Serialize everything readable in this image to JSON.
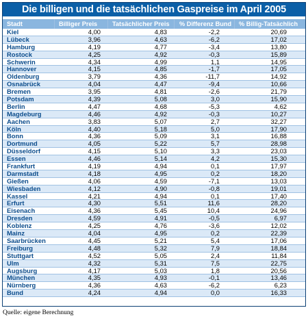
{
  "title": "Die billigen und die tatsächlichen Gaspreise im April 2005",
  "columns": {
    "city": "Stadt",
    "cheap": "Billiger Preis",
    "actual": "Tatsächlicher Preis",
    "diff": "% Differenz Bund",
    "pct": "% Billig-Tatsächlich"
  },
  "rows": [
    {
      "city": "Kiel",
      "cheap": "4,00",
      "actual": "4,83",
      "diff": "-2,2",
      "pct": "20,69"
    },
    {
      "city": "Lübeck",
      "cheap": "3,96",
      "actual": "4,63",
      "diff": "-6,2",
      "pct": "17,02"
    },
    {
      "city": "Hamburg",
      "cheap": "4,19",
      "actual": "4,77",
      "diff": "-3,4",
      "pct": "13,80"
    },
    {
      "city": "Rostock",
      "cheap": "4,25",
      "actual": "4,92",
      "diff": "-0,3",
      "pct": "15,89"
    },
    {
      "city": "Schwerin",
      "cheap": "4,34",
      "actual": "4,99",
      "diff": "1,1",
      "pct": "14,95"
    },
    {
      "city": "Hannover",
      "cheap": "4,15",
      "actual": "4,85",
      "diff": "-1,7",
      "pct": "17,05"
    },
    {
      "city": "Oldenburg",
      "cheap": "3,79",
      "actual": "4,36",
      "diff": "-11,7",
      "pct": "14,92"
    },
    {
      "city": "Osnabrück",
      "cheap": "4,04",
      "actual": "4,47",
      "diff": "-9,4",
      "pct": "10,66"
    },
    {
      "city": "Bremen",
      "cheap": "3,95",
      "actual": "4,81",
      "diff": "-2,6",
      "pct": "21,79"
    },
    {
      "city": "Potsdam",
      "cheap": "4,39",
      "actual": "5,08",
      "diff": "3,0",
      "pct": "15,90"
    },
    {
      "city": "Berlin",
      "cheap": "4,47",
      "actual": "4,68",
      "diff": "-5,3",
      "pct": "4,62"
    },
    {
      "city": "Magdeburg",
      "cheap": "4,46",
      "actual": "4,92",
      "diff": "-0,3",
      "pct": "10,27"
    },
    {
      "city": "Aachen",
      "cheap": "3,83",
      "actual": "5,07",
      "diff": "2,7",
      "pct": "32,27"
    },
    {
      "city": "Köln",
      "cheap": "4,40",
      "actual": "5,18",
      "diff": "5,0",
      "pct": "17,90"
    },
    {
      "city": "Bonn",
      "cheap": "4,36",
      "actual": "5,09",
      "diff": "3,1",
      "pct": "16,88"
    },
    {
      "city": "Dortmund",
      "cheap": "4,05",
      "actual": "5,22",
      "diff": "5,7",
      "pct": "28,98"
    },
    {
      "city": "Düsseldorf",
      "cheap": "4,15",
      "actual": "5,10",
      "diff": "3,3",
      "pct": "23,03"
    },
    {
      "city": "Essen",
      "cheap": "4,46",
      "actual": "5,14",
      "diff": "4,2",
      "pct": "15,30"
    },
    {
      "city": "Frankfurt",
      "cheap": "4,19",
      "actual": "4,94",
      "diff": "0,1",
      "pct": "17,97"
    },
    {
      "city": "Darmstadt",
      "cheap": "4,18",
      "actual": "4,95",
      "diff": "0,2",
      "pct": "18,20"
    },
    {
      "city": "Gießen",
      "cheap": "4,06",
      "actual": "4,59",
      "diff": "-7,1",
      "pct": "13,03"
    },
    {
      "city": "Wiesbaden",
      "cheap": "4,12",
      "actual": "4,90",
      "diff": "-0,8",
      "pct": "19,01"
    },
    {
      "city": "Kassel",
      "cheap": "4,21",
      "actual": "4,94",
      "diff": "0,1",
      "pct": "17,40"
    },
    {
      "city": "Erfurt",
      "cheap": "4,30",
      "actual": "5,51",
      "diff": "11,6",
      "pct": "28,20"
    },
    {
      "city": "Eisenach",
      "cheap": "4,36",
      "actual": "5,45",
      "diff": "10,4",
      "pct": "24,96"
    },
    {
      "city": "Dresden",
      "cheap": "4,59",
      "actual": "4,91",
      "diff": "-0,5",
      "pct": "6,97"
    },
    {
      "city": "Koblenz",
      "cheap": "4,25",
      "actual": "4,76",
      "diff": "-3,6",
      "pct": "12,02"
    },
    {
      "city": "Mainz",
      "cheap": "4,04",
      "actual": "4,95",
      "diff": "0,2",
      "pct": "22,39"
    },
    {
      "city": "Saarbrücken",
      "cheap": "4,45",
      "actual": "5,21",
      "diff": "5,4",
      "pct": "17,06"
    },
    {
      "city": "Freiburg",
      "cheap": "4,48",
      "actual": "5,32",
      "diff": "7,9",
      "pct": "18,84"
    },
    {
      "city": "Stuttgart",
      "cheap": "4,52",
      "actual": "5,05",
      "diff": "2,4",
      "pct": "11,84"
    },
    {
      "city": "Ulm",
      "cheap": "4,32",
      "actual": "5,31",
      "diff": "7,5",
      "pct": "22,75"
    },
    {
      "city": "Augsburg",
      "cheap": "4,17",
      "actual": "5,03",
      "diff": "1,8",
      "pct": "20,56"
    },
    {
      "city": "München",
      "cheap": "4,35",
      "actual": "4,93",
      "diff": "-0,1",
      "pct": "13,46"
    },
    {
      "city": "Nürnberg",
      "cheap": "4,36",
      "actual": "4,63",
      "diff": "-6,2",
      "pct": "6,23"
    },
    {
      "city": "Bund",
      "cheap": "4,24",
      "actual": "4,94",
      "diff": "0,0",
      "pct": "16,33"
    }
  ],
  "source": "Quelle: eigene Berechnung",
  "colors": {
    "title_bg": "#0b5fa7",
    "header_bg": "#8ab6df",
    "row_alt": "#dbe9f7",
    "city_text": "#0b4c8c"
  }
}
